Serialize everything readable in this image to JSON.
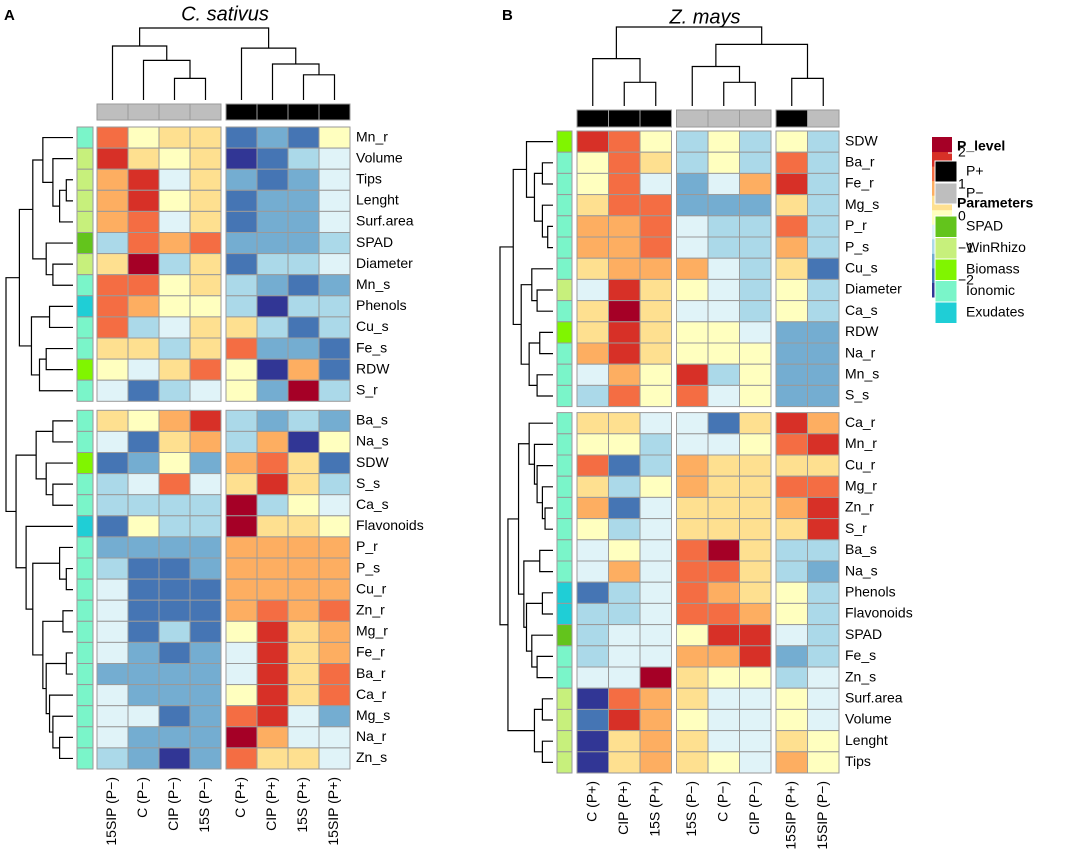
{
  "chart_data": [
    {
      "type": "heatmap",
      "panel": "A",
      "title": "C. sativus",
      "columns": [
        "15SIP (P−)",
        "C (P−)",
        "CIP (P−)",
        "15S (P−)",
        "C (P+)",
        "CIP (P+)",
        "15S (P+)",
        "15SIP (P+)"
      ],
      "column_annotation": [
        "P−",
        "P−",
        "P−",
        "P−",
        "P+",
        "P+",
        "P+",
        "P+"
      ],
      "rows": [
        "Mn_r",
        "Volume",
        "Tips",
        "Lenght",
        "Surf.area",
        "SPAD",
        "Diameter",
        "Mn_s",
        "Phenols",
        "Cu_s",
        "Fe_s",
        "RDW",
        "S_r",
        "Ba_s",
        "Na_s",
        "SDW",
        "S_s",
        "Ca_s",
        "Flavonoids",
        "P_r",
        "P_s",
        "Cu_r",
        "Zn_r",
        "Mg_r",
        "Fe_r",
        "Ba_r",
        "Ca_r",
        "Mg_s",
        "Na_r",
        "Zn_s"
      ],
      "row_annotation": [
        "Ionomic",
        "WinRhizo",
        "WinRhizo",
        "WinRhizo",
        "WinRhizo",
        "SPAD",
        "WinRhizo",
        "Ionomic",
        "Exudates",
        "Ionomic",
        "Ionomic",
        "Biomass",
        "Ionomic",
        "Ionomic",
        "Ionomic",
        "Biomass",
        "Ionomic",
        "Ionomic",
        "Exudates",
        "Ionomic",
        "Ionomic",
        "Ionomic",
        "Ionomic",
        "Ionomic",
        "Ionomic",
        "Ionomic",
        "Ionomic",
        "Ionomic",
        "Ionomic",
        "Ionomic"
      ],
      "values": [
        [
          1.5,
          0,
          0.5,
          0.5,
          -2,
          -1.5,
          -2,
          0
        ],
        [
          2,
          0.5,
          0,
          0.5,
          -2.5,
          -2,
          -1,
          -0.5
        ],
        [
          1,
          2,
          -0.5,
          0.5,
          -1.5,
          -2,
          -1.5,
          -0.5
        ],
        [
          1,
          2,
          0,
          0.5,
          -2,
          -1.5,
          -1.5,
          -0.5
        ],
        [
          1,
          1.5,
          -0.5,
          0.5,
          -2,
          -1.5,
          -1.5,
          -0.5
        ],
        [
          -1,
          1.5,
          1,
          1.5,
          -1.5,
          -1.5,
          -1.5,
          -1
        ],
        [
          0.5,
          2.5,
          -1,
          0.5,
          -2,
          -1,
          -1,
          -0.5
        ],
        [
          1.5,
          1.5,
          0,
          0.5,
          -1,
          -1.5,
          -2,
          -1.5
        ],
        [
          1.5,
          1,
          0,
          0,
          -1,
          -2.5,
          -1,
          -1
        ],
        [
          1.5,
          -1,
          -0.5,
          0.5,
          0.5,
          -1,
          -2,
          -1
        ],
        [
          0.5,
          0.5,
          -1,
          0.5,
          1.5,
          -1.5,
          -1.5,
          -2
        ],
        [
          0,
          -0.5,
          0.5,
          1.5,
          0,
          -2.5,
          1,
          -2
        ],
        [
          -0.5,
          -2,
          -1,
          -0.5,
          0,
          -1.5,
          2.5,
          -1
        ],
        [
          0.5,
          0,
          1,
          2,
          -1,
          -1.5,
          -1,
          -1.5
        ],
        [
          -0.5,
          -2,
          0.5,
          1,
          -1,
          1,
          -2.5,
          0
        ],
        [
          -2,
          -1.5,
          0,
          -1.5,
          1,
          1.5,
          0.5,
          -2
        ],
        [
          -1,
          -0.5,
          1.5,
          -0.5,
          0.5,
          2,
          0.5,
          -1
        ],
        [
          -1,
          -1,
          -1,
          -1,
          2.5,
          -1,
          0,
          -0.5
        ],
        [
          -2,
          0,
          -1,
          -1,
          2.5,
          0.5,
          0.5,
          0
        ],
        [
          -1.5,
          -1.5,
          -1.5,
          -1.5,
          1,
          1,
          1,
          1
        ],
        [
          -1,
          -2,
          -2,
          -1.5,
          1,
          1,
          1,
          1
        ],
        [
          -0.5,
          -2,
          -2,
          -2,
          1,
          1,
          1,
          1
        ],
        [
          -0.5,
          -2,
          -2,
          -2,
          1,
          1.5,
          1,
          1.5
        ],
        [
          -0.5,
          -2,
          -1,
          -2,
          0,
          2,
          0.5,
          1
        ],
        [
          -0.5,
          -1.5,
          -2,
          -1.5,
          -0.5,
          2,
          0.5,
          1
        ],
        [
          -1.5,
          -1.5,
          -1.5,
          -1.5,
          -0.5,
          2,
          0.5,
          1.5
        ],
        [
          -0.5,
          -1.5,
          -1.5,
          -1.5,
          0,
          2,
          0.5,
          1.5
        ],
        [
          -0.5,
          -0.5,
          -2,
          -1.5,
          1.5,
          2,
          -0.5,
          -1.5
        ],
        [
          -0.5,
          -1.5,
          -1.5,
          -1.5,
          2.5,
          1,
          -0.5,
          -0.5
        ],
        [
          -1,
          -1.5,
          -2.5,
          -1.5,
          1.5,
          0.5,
          0.5,
          -0.5
        ]
      ]
    },
    {
      "type": "heatmap",
      "panel": "B",
      "title": "Z. mays",
      "columns": [
        "C (P+)",
        "CIP (P+)",
        "15S (P+)",
        "15S (P−)",
        "C (P−)",
        "CIP (P−)",
        "15SIP (P+)",
        "15SIP (P−)"
      ],
      "column_annotation": [
        "P+",
        "P+",
        "P+",
        "P−",
        "P−",
        "P−",
        "P+",
        "P−"
      ],
      "rows": [
        "SDW",
        "Ba_r",
        "Fe_r",
        "Mg_s",
        "P_r",
        "P_s",
        "Cu_s",
        "Diameter",
        "Ca_s",
        "RDW",
        "Na_r",
        "Mn_s",
        "S_s",
        "Ca_r",
        "Mn_r",
        "Cu_r",
        "Mg_r",
        "Zn_r",
        "S_r",
        "Ba_s",
        "Na_s",
        "Phenols",
        "Flavonoids",
        "SPAD",
        "Fe_s",
        "Zn_s",
        "Surf.area",
        "Volume",
        "Lenght",
        "Tips"
      ],
      "row_annotation": [
        "Biomass",
        "Ionomic",
        "Ionomic",
        "Ionomic",
        "Ionomic",
        "Ionomic",
        "Ionomic",
        "WinRhizo",
        "Ionomic",
        "Biomass",
        "Ionomic",
        "Ionomic",
        "Ionomic",
        "Ionomic",
        "Ionomic",
        "Ionomic",
        "Ionomic",
        "Ionomic",
        "Ionomic",
        "Ionomic",
        "Ionomic",
        "Exudates",
        "Exudates",
        "SPAD",
        "Ionomic",
        "Ionomic",
        "WinRhizo",
        "WinRhizo",
        "WinRhizo",
        "WinRhizo"
      ],
      "values": [
        [
          2,
          1.5,
          0,
          -1,
          0,
          -1,
          0,
          -1
        ],
        [
          0,
          1.5,
          0.5,
          -1,
          0,
          -1,
          1.5,
          -1
        ],
        [
          0,
          1.5,
          -0.5,
          -1.5,
          -0.5,
          1,
          2,
          -1
        ],
        [
          0.5,
          1.5,
          1.5,
          -1.5,
          -1.5,
          -1.5,
          0.5,
          -1
        ],
        [
          1,
          1,
          1.5,
          -0.5,
          -1,
          -1,
          1.5,
          -1
        ],
        [
          1,
          1,
          1.5,
          -0.5,
          -1,
          -1,
          1,
          -1
        ],
        [
          0.5,
          1,
          1,
          1,
          -0.5,
          -1,
          0.5,
          -2
        ],
        [
          -0.5,
          2,
          0.5,
          0,
          -0.5,
          -1,
          0,
          -1
        ],
        [
          0.5,
          2.5,
          0.5,
          -0.5,
          -0.5,
          -1,
          0,
          -1
        ],
        [
          0.5,
          2,
          0.5,
          0,
          0,
          -0.5,
          -1.5,
          -1.5
        ],
        [
          1,
          2,
          0.5,
          0,
          0,
          0,
          -1.5,
          -1.5
        ],
        [
          -0.5,
          1,
          0,
          2,
          -1,
          0,
          -1.5,
          -1.5
        ],
        [
          -1,
          1.5,
          0,
          1.5,
          -0.5,
          0,
          -1.5,
          -1.5
        ],
        [
          0.5,
          0.5,
          -0.5,
          -0.5,
          -2,
          0.5,
          2,
          1
        ],
        [
          0,
          0,
          -1,
          -0.5,
          -0.5,
          0,
          1.5,
          2
        ],
        [
          1.5,
          -2,
          -1,
          1,
          0.5,
          0.5,
          0.5,
          0.5
        ],
        [
          0.5,
          -1,
          0,
          1,
          0.5,
          0.5,
          1.5,
          1.5
        ],
        [
          1,
          -2,
          -0.5,
          0.5,
          0.5,
          0.5,
          1,
          2
        ],
        [
          0,
          -1,
          -0.5,
          0.5,
          0.5,
          0.5,
          0.5,
          2
        ],
        [
          -0.5,
          0,
          -0.5,
          1.5,
          2.5,
          0.5,
          -1,
          -1
        ],
        [
          -0.5,
          1,
          -0.5,
          1.5,
          1.5,
          0.5,
          -1,
          -1.5
        ],
        [
          -2,
          -1,
          -0.5,
          1.5,
          1,
          0.5,
          0,
          -1
        ],
        [
          -1,
          -1,
          -0.5,
          1.5,
          1.5,
          1,
          0,
          -1
        ],
        [
          -1,
          -0.5,
          -0.5,
          0,
          2,
          2,
          -0.5,
          -1
        ],
        [
          -1,
          -0.5,
          -0.5,
          1,
          1,
          2,
          -1.5,
          -1
        ],
        [
          -0.5,
          -0.5,
          2.5,
          0.5,
          0,
          0,
          -1,
          -0.5
        ],
        [
          -2.5,
          1.5,
          1,
          0.5,
          -0.5,
          -0.5,
          0,
          -0.5
        ],
        [
          -2,
          2,
          1,
          0,
          -0.5,
          -0.5,
          0,
          -0.5
        ],
        [
          -2.5,
          0.5,
          1,
          0.5,
          -0.5,
          -0.5,
          0.5,
          0
        ],
        [
          -2.5,
          0.5,
          1,
          0.5,
          0,
          -0.5,
          1,
          0
        ]
      ]
    }
  ],
  "legend": {
    "colorscale": {
      "lim": [
        -2.5,
        2.5
      ],
      "colors": [
        "#313695",
        "#4575b4",
        "#74add1",
        "#abd9e9",
        "#e0f3f8",
        "#ffffbf",
        "#fee090",
        "#fdae61",
        "#f46d43",
        "#d73027",
        "#a50026"
      ],
      "ticks": [
        2,
        1,
        0,
        {
          "value": -1,
          "label": "−1"
        },
        {
          "value": -2,
          "label": "−2"
        }
      ]
    },
    "P_level": {
      "title": "P_level",
      "names": [
        "P+",
        "P−"
      ],
      "colors": [
        "#000000",
        "#bebebe"
      ]
    },
    "parameters": {
      "title": "Parameters",
      "names": [
        "SPAD",
        "WinRhizo",
        "Biomass",
        "Ionomic",
        "Exudates"
      ],
      "colors": [
        "#63c41c",
        "#c7f07c",
        "#80f500",
        "#7af5c9",
        "#1fced6"
      ]
    }
  }
}
